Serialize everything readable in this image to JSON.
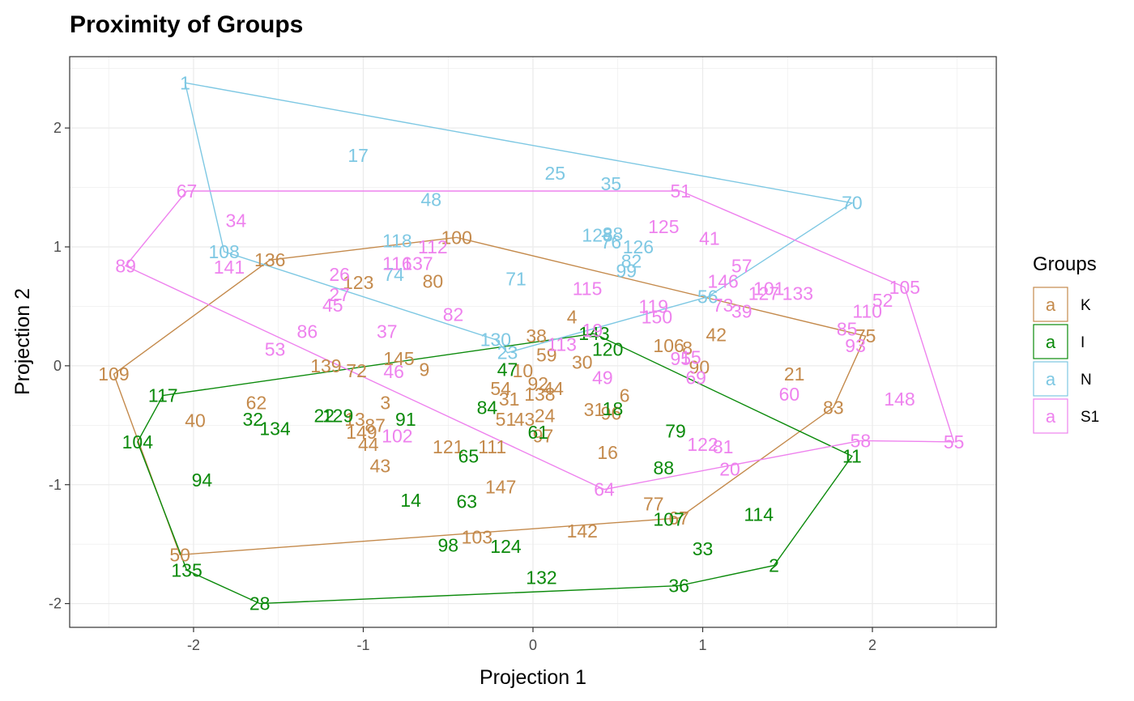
{
  "chart_data": {
    "type": "scatter",
    "title": "Proximity of Groups",
    "xlabel": "Projection 1",
    "ylabel": "Projection 2",
    "xlim": [
      -2.73,
      2.73
    ],
    "ylim": [
      -2.2,
      2.6
    ],
    "x_ticks": [
      -2,
      -1,
      0,
      1,
      2
    ],
    "y_ticks": [
      -2,
      -1,
      0,
      1,
      2
    ],
    "x_tick_labels": [
      "-2",
      "-1",
      "0",
      "1",
      "2"
    ],
    "y_tick_labels": [
      "-2",
      "-1",
      "0",
      "1",
      "2"
    ],
    "grid": true,
    "legend": {
      "title": "Groups",
      "position": "right",
      "key_glyph": "a",
      "entries": [
        "K",
        "I",
        "N",
        "S1"
      ]
    },
    "colors": {
      "K": "#c48a4c",
      "I": "#0b8a0b",
      "N": "#7ec8e3",
      "S1": "#ee82ee"
    },
    "series": [
      {
        "name": "K",
        "points": [
          {
            "label": "109",
            "x": -2.47,
            "y": -0.07
          },
          {
            "label": "136",
            "x": -1.55,
            "y": 0.89
          },
          {
            "label": "100",
            "x": -0.45,
            "y": 1.08
          },
          {
            "label": "80",
            "x": -0.59,
            "y": 0.71
          },
          {
            "label": "123",
            "x": -1.03,
            "y": 0.7
          },
          {
            "label": "75",
            "x": 1.96,
            "y": 0.25
          },
          {
            "label": "83",
            "x": 1.77,
            "y": -0.35
          },
          {
            "label": "21",
            "x": 1.54,
            "y": -0.07
          },
          {
            "label": "42",
            "x": 1.08,
            "y": 0.26
          },
          {
            "label": "106",
            "x": 0.8,
            "y": 0.17
          },
          {
            "label": "8",
            "x": 0.91,
            "y": 0.15
          },
          {
            "label": "90",
            "x": 0.98,
            "y": -0.01
          },
          {
            "label": "38",
            "x": 0.02,
            "y": 0.25
          },
          {
            "label": "59",
            "x": 0.08,
            "y": 0.09
          },
          {
            "label": "30",
            "x": 0.29,
            "y": 0.03
          },
          {
            "label": "4",
            "x": 0.23,
            "y": 0.41
          },
          {
            "label": "10",
            "x": -0.06,
            "y": -0.04
          },
          {
            "label": "92",
            "x": 0.03,
            "y": -0.15
          },
          {
            "label": "44",
            "x": 0.12,
            "y": -0.19
          },
          {
            "label": "138",
            "x": 0.04,
            "y": -0.24
          },
          {
            "label": "54",
            "x": -0.19,
            "y": -0.19
          },
          {
            "label": "31",
            "x": -0.14,
            "y": -0.28
          },
          {
            "label": "6",
            "x": 0.54,
            "y": -0.25
          },
          {
            "label": "96",
            "x": 0.46,
            "y": -0.4
          },
          {
            "label": "31",
            "x": 0.36,
            "y": -0.37
          },
          {
            "label": "51",
            "x": -0.16,
            "y": -0.45
          },
          {
            "label": "43",
            "x": -0.05,
            "y": -0.45
          },
          {
            "label": "24",
            "x": 0.07,
            "y": -0.42
          },
          {
            "label": "97",
            "x": 0.06,
            "y": -0.59
          },
          {
            "label": "121",
            "x": -0.5,
            "y": -0.68
          },
          {
            "label": "111",
            "x": -0.24,
            "y": -0.68
          },
          {
            "label": "16",
            "x": 0.44,
            "y": -0.73
          },
          {
            "label": "147",
            "x": -0.19,
            "y": -1.02
          },
          {
            "label": "77",
            "x": 0.71,
            "y": -1.16
          },
          {
            "label": "67",
            "x": 0.86,
            "y": -1.28
          },
          {
            "label": "142",
            "x": 0.29,
            "y": -1.39
          },
          {
            "label": "103",
            "x": -0.33,
            "y": -1.44
          },
          {
            "label": "50",
            "x": -2.08,
            "y": -1.59
          },
          {
            "label": "62",
            "x": -1.63,
            "y": -0.31
          },
          {
            "label": "40",
            "x": -1.99,
            "y": -0.46
          },
          {
            "label": "139",
            "x": -1.22,
            "y": 0.0
          },
          {
            "label": "72",
            "x": -1.04,
            "y": -0.04
          },
          {
            "label": "3",
            "x": -0.87,
            "y": -0.31
          },
          {
            "label": "13",
            "x": -1.05,
            "y": -0.45
          },
          {
            "label": "87",
            "x": -0.93,
            "y": -0.5
          },
          {
            "label": "145",
            "x": -0.79,
            "y": 0.06
          },
          {
            "label": "9",
            "x": -0.64,
            "y": -0.03
          },
          {
            "label": "149",
            "x": -1.01,
            "y": -0.56
          },
          {
            "label": "44",
            "x": -0.97,
            "y": -0.66
          },
          {
            "label": "43",
            "x": -0.9,
            "y": -0.84
          }
        ],
        "hull": [
          "109",
          "136",
          "100",
          "75",
          "83",
          "67",
          "50"
        ]
      },
      {
        "name": "I",
        "points": [
          {
            "label": "117",
            "x": -2.18,
            "y": -0.25
          },
          {
            "label": "104",
            "x": -2.33,
            "y": -0.64
          },
          {
            "label": "94",
            "x": -1.95,
            "y": -0.96
          },
          {
            "label": "135",
            "x": -2.04,
            "y": -1.72
          },
          {
            "label": "28",
            "x": -1.61,
            "y": -2.0
          },
          {
            "label": "32",
            "x": -1.65,
            "y": -0.45
          },
          {
            "label": "134",
            "x": -1.52,
            "y": -0.53
          },
          {
            "label": "22",
            "x": -1.23,
            "y": -0.42
          },
          {
            "label": "129",
            "x": -1.15,
            "y": -0.42
          },
          {
            "label": "91",
            "x": -0.75,
            "y": -0.45
          },
          {
            "label": "47",
            "x": -0.15,
            "y": -0.03
          },
          {
            "label": "84",
            "x": -0.27,
            "y": -0.35
          },
          {
            "label": "61",
            "x": 0.03,
            "y": -0.56
          },
          {
            "label": "65",
            "x": -0.38,
            "y": -0.76
          },
          {
            "label": "14",
            "x": -0.72,
            "y": -1.13
          },
          {
            "label": "63",
            "x": -0.39,
            "y": -1.14
          },
          {
            "label": "98",
            "x": -0.5,
            "y": -1.51
          },
          {
            "label": "124",
            "x": -0.16,
            "y": -1.52
          },
          {
            "label": "132",
            "x": 0.05,
            "y": -1.78
          },
          {
            "label": "143",
            "x": 0.36,
            "y": 0.27
          },
          {
            "label": "120",
            "x": 0.44,
            "y": 0.14
          },
          {
            "label": "18",
            "x": 0.47,
            "y": -0.36
          },
          {
            "label": "79",
            "x": 0.84,
            "y": -0.55
          },
          {
            "label": "88",
            "x": 0.77,
            "y": -0.86
          },
          {
            "label": "107",
            "x": 0.8,
            "y": -1.29
          },
          {
            "label": "114",
            "x": 1.33,
            "y": -1.25
          },
          {
            "label": "33",
            "x": 1.0,
            "y": -1.54
          },
          {
            "label": "36",
            "x": 0.86,
            "y": -1.85
          },
          {
            "label": "2",
            "x": 1.42,
            "y": -1.68
          },
          {
            "label": "11",
            "x": 1.88,
            "y": -0.76
          }
        ],
        "hull": [
          "117",
          "143",
          "11",
          "2",
          "36",
          "28",
          "135",
          "104"
        ]
      },
      {
        "name": "N",
        "points": [
          {
            "label": "1",
            "x": -2.05,
            "y": 2.38
          },
          {
            "label": "17",
            "x": -1.03,
            "y": 1.77
          },
          {
            "label": "25",
            "x": 0.13,
            "y": 1.62
          },
          {
            "label": "35",
            "x": 0.46,
            "y": 1.53
          },
          {
            "label": "48",
            "x": -0.6,
            "y": 1.4
          },
          {
            "label": "70",
            "x": 1.88,
            "y": 1.37
          },
          {
            "label": "108",
            "x": -1.82,
            "y": 0.96
          },
          {
            "label": "118",
            "x": -0.8,
            "y": 1.05
          },
          {
            "label": "74",
            "x": -0.82,
            "y": 0.77
          },
          {
            "label": "71",
            "x": -0.1,
            "y": 0.73
          },
          {
            "label": "128",
            "x": 0.38,
            "y": 1.1
          },
          {
            "label": "88",
            "x": 0.47,
            "y": 1.11
          },
          {
            "label": "76",
            "x": 0.46,
            "y": 1.04
          },
          {
            "label": "126",
            "x": 0.62,
            "y": 1.0
          },
          {
            "label": "82",
            "x": 0.58,
            "y": 0.88
          },
          {
            "label": "99",
            "x": 0.55,
            "y": 0.8
          },
          {
            "label": "56",
            "x": 1.03,
            "y": 0.58
          },
          {
            "label": "130",
            "x": -0.22,
            "y": 0.22
          },
          {
            "label": "23",
            "x": -0.15,
            "y": 0.11
          }
        ],
        "hull": [
          "1",
          "70",
          "56",
          "23",
          "130",
          "108"
        ]
      },
      {
        "name": "S1",
        "points": [
          {
            "label": "67",
            "x": -2.04,
            "y": 1.47
          },
          {
            "label": "51",
            "x": 0.87,
            "y": 1.47
          },
          {
            "label": "105",
            "x": 2.19,
            "y": 0.66
          },
          {
            "label": "55",
            "x": 2.48,
            "y": -0.64
          },
          {
            "label": "58",
            "x": 1.93,
            "y": -0.63
          },
          {
            "label": "20",
            "x": 1.16,
            "y": -0.87
          },
          {
            "label": "64",
            "x": 0.42,
            "y": -1.04
          },
          {
            "label": "89",
            "x": -2.4,
            "y": 0.84
          },
          {
            "label": "34",
            "x": -1.75,
            "y": 1.22
          },
          {
            "label": "141",
            "x": -1.79,
            "y": 0.83
          },
          {
            "label": "125",
            "x": 0.77,
            "y": 1.17
          },
          {
            "label": "41",
            "x": 1.04,
            "y": 1.07
          },
          {
            "label": "57",
            "x": 1.23,
            "y": 0.84
          },
          {
            "label": "146",
            "x": 1.12,
            "y": 0.71
          },
          {
            "label": "101",
            "x": 1.39,
            "y": 0.65
          },
          {
            "label": "127",
            "x": 1.36,
            "y": 0.61
          },
          {
            "label": "133",
            "x": 1.56,
            "y": 0.61
          },
          {
            "label": "73",
            "x": 1.12,
            "y": 0.51
          },
          {
            "label": "39",
            "x": 1.23,
            "y": 0.46
          },
          {
            "label": "52",
            "x": 2.06,
            "y": 0.55
          },
          {
            "label": "110",
            "x": 1.97,
            "y": 0.46
          },
          {
            "label": "85",
            "x": 1.85,
            "y": 0.31
          },
          {
            "label": "93",
            "x": 1.9,
            "y": 0.17
          },
          {
            "label": "60",
            "x": 1.51,
            "y": -0.24
          },
          {
            "label": "148",
            "x": 2.16,
            "y": -0.28
          },
          {
            "label": "116",
            "x": -0.8,
            "y": 0.86
          },
          {
            "label": "137",
            "x": -0.68,
            "y": 0.86
          },
          {
            "label": "112",
            "x": -0.59,
            "y": 1.0
          },
          {
            "label": "26",
            "x": -1.14,
            "y": 0.77
          },
          {
            "label": "27",
            "x": -1.14,
            "y": 0.6
          },
          {
            "label": "45",
            "x": -1.18,
            "y": 0.51
          },
          {
            "label": "86",
            "x": -1.33,
            "y": 0.29
          },
          {
            "label": "37",
            "x": -0.86,
            "y": 0.29
          },
          {
            "label": "82",
            "x": -0.47,
            "y": 0.43
          },
          {
            "label": "115",
            "x": 0.32,
            "y": 0.65
          },
          {
            "label": "119",
            "x": 0.71,
            "y": 0.5
          },
          {
            "label": "150",
            "x": 0.73,
            "y": 0.41
          },
          {
            "label": "113",
            "x": 0.17,
            "y": 0.18
          },
          {
            "label": "19",
            "x": 0.35,
            "y": 0.3
          },
          {
            "label": "95",
            "x": 0.87,
            "y": 0.06
          },
          {
            "label": "15",
            "x": 0.93,
            "y": 0.07
          },
          {
            "label": "69",
            "x": 0.96,
            "y": -0.1
          },
          {
            "label": "49",
            "x": 0.41,
            "y": -0.1
          },
          {
            "label": "46",
            "x": -0.82,
            "y": -0.05
          },
          {
            "label": "53",
            "x": -1.52,
            "y": 0.14
          },
          {
            "label": "102",
            "x": -0.8,
            "y": -0.59
          },
          {
            "label": "122",
            "x": 1.0,
            "y": -0.66
          },
          {
            "label": "81",
            "x": 1.12,
            "y": -0.68
          }
        ],
        "hull": [
          "67",
          "51",
          "105",
          "55",
          "58",
          "64",
          "89"
        ]
      }
    ]
  }
}
